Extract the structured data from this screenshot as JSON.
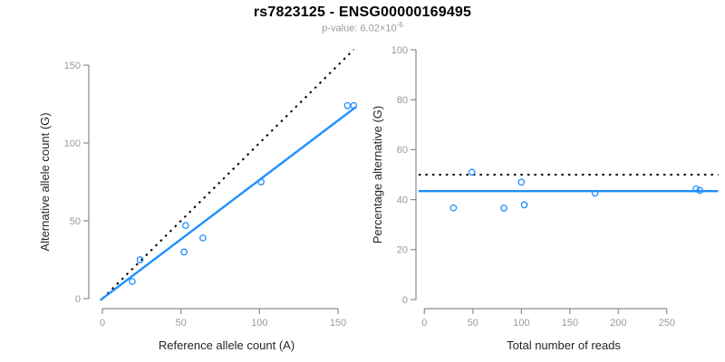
{
  "header": {
    "title": "rs7823125 - ENSG00000169495",
    "subtitle_prefix": "p-value: ",
    "p_value_mantissa": "6.02",
    "p_value_times": "×10",
    "p_value_exponent": "-6"
  },
  "colors": {
    "accent_blue": "#1E90FF",
    "line_black": "#000000",
    "axis_gray": "#8c8c8c",
    "tick_label_gray": "#9a9a9a",
    "axis_title_color": "#262626",
    "subtitle_gray": "#999999"
  },
  "chart_data": [
    {
      "type": "scatter",
      "name": "allele-counts-panel",
      "xlabel": "Reference allele count (A)",
      "ylabel": "Alternative allele count (G)",
      "xlim": [
        0,
        160
      ],
      "ylim": [
        0,
        160
      ],
      "xticks": [
        0,
        50,
        100,
        150
      ],
      "yticks": [
        0,
        50,
        100,
        150
      ],
      "grid": false,
      "points": [
        {
          "x": 19,
          "y": 11
        },
        {
          "x": 24,
          "y": 25
        },
        {
          "x": 52,
          "y": 30
        },
        {
          "x": 53,
          "y": 47
        },
        {
          "x": 64,
          "y": 39
        },
        {
          "x": 101,
          "y": 75
        },
        {
          "x": 156,
          "y": 124
        },
        {
          "x": 160,
          "y": 124
        }
      ],
      "lines": [
        {
          "name": "identity-line",
          "style": "dotted",
          "color": "#000000",
          "slope": 1,
          "intercept": 0
        },
        {
          "name": "fit-line",
          "style": "solid",
          "color": "#1E90FF",
          "slope": 0.763,
          "intercept": 0
        }
      ]
    },
    {
      "type": "scatter",
      "name": "percentage-panel",
      "xlabel": "Total number of reads",
      "ylabel": "Percentage alternative (G)",
      "xlim": [
        0,
        300
      ],
      "ylim": [
        0,
        100
      ],
      "xticks": [
        0,
        50,
        100,
        150,
        200,
        250
      ],
      "yticks": [
        0,
        20,
        40,
        60,
        80,
        100
      ],
      "grid": false,
      "points": [
        {
          "x": 30,
          "y": 36.7
        },
        {
          "x": 49,
          "y": 51
        },
        {
          "x": 82,
          "y": 36.6
        },
        {
          "x": 100,
          "y": 47
        },
        {
          "x": 103,
          "y": 37.9
        },
        {
          "x": 176,
          "y": 42.6
        },
        {
          "x": 280,
          "y": 44.3
        },
        {
          "x": 284,
          "y": 43.7
        }
      ],
      "lines": [
        {
          "name": "fifty-percent-line",
          "style": "dotted",
          "color": "#000000",
          "hline": 50
        },
        {
          "name": "mean-percentage-line",
          "style": "solid",
          "color": "#1E90FF",
          "hline": 43.4
        }
      ]
    }
  ]
}
